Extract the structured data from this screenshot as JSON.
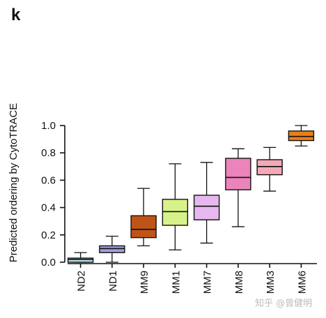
{
  "panel_label": "k",
  "watermark": "知乎 @曾健明",
  "chart_data": {
    "type": "boxplot",
    "title": "",
    "xlabel": "",
    "ylabel": "Predicted ordering by CytoTRACE",
    "ylim": [
      0,
      1.0
    ],
    "yticks": [
      "0.0",
      "0.2",
      "0.4",
      "0.6",
      "0.8",
      "1.0"
    ],
    "grid": false,
    "categories": [
      "ND2",
      "ND1",
      "MM9",
      "MM1",
      "MM7",
      "MM8",
      "MM3",
      "MM6"
    ],
    "boxes": [
      {
        "name": "ND2",
        "min": 0.0,
        "q1": 0.0,
        "median": 0.02,
        "q3": 0.03,
        "max": 0.07,
        "color": "#bfe3ee"
      },
      {
        "name": "ND1",
        "min": 0.0,
        "q1": 0.07,
        "median": 0.1,
        "q3": 0.12,
        "max": 0.19,
        "color": "#9f9fdc"
      },
      {
        "name": "MM9",
        "min": 0.12,
        "q1": 0.18,
        "median": 0.24,
        "q3": 0.34,
        "max": 0.54,
        "color": "#bf5418"
      },
      {
        "name": "MM1",
        "min": 0.09,
        "q1": 0.27,
        "median": 0.37,
        "q3": 0.46,
        "max": 0.72,
        "color": "#d8f28a"
      },
      {
        "name": "MM7",
        "min": 0.14,
        "q1": 0.31,
        "median": 0.41,
        "q3": 0.49,
        "max": 0.73,
        "color": "#e6b8ef"
      },
      {
        "name": "MM8",
        "min": 0.26,
        "q1": 0.53,
        "median": 0.62,
        "q3": 0.76,
        "max": 0.83,
        "color": "#ec84bc"
      },
      {
        "name": "MM3",
        "min": 0.52,
        "q1": 0.64,
        "median": 0.7,
        "q3": 0.75,
        "max": 0.84,
        "color": "#f5a9b6"
      },
      {
        "name": "MM6",
        "min": 0.85,
        "q1": 0.89,
        "median": 0.92,
        "q3": 0.96,
        "max": 1.0,
        "color": "#ec7f14"
      }
    ]
  }
}
